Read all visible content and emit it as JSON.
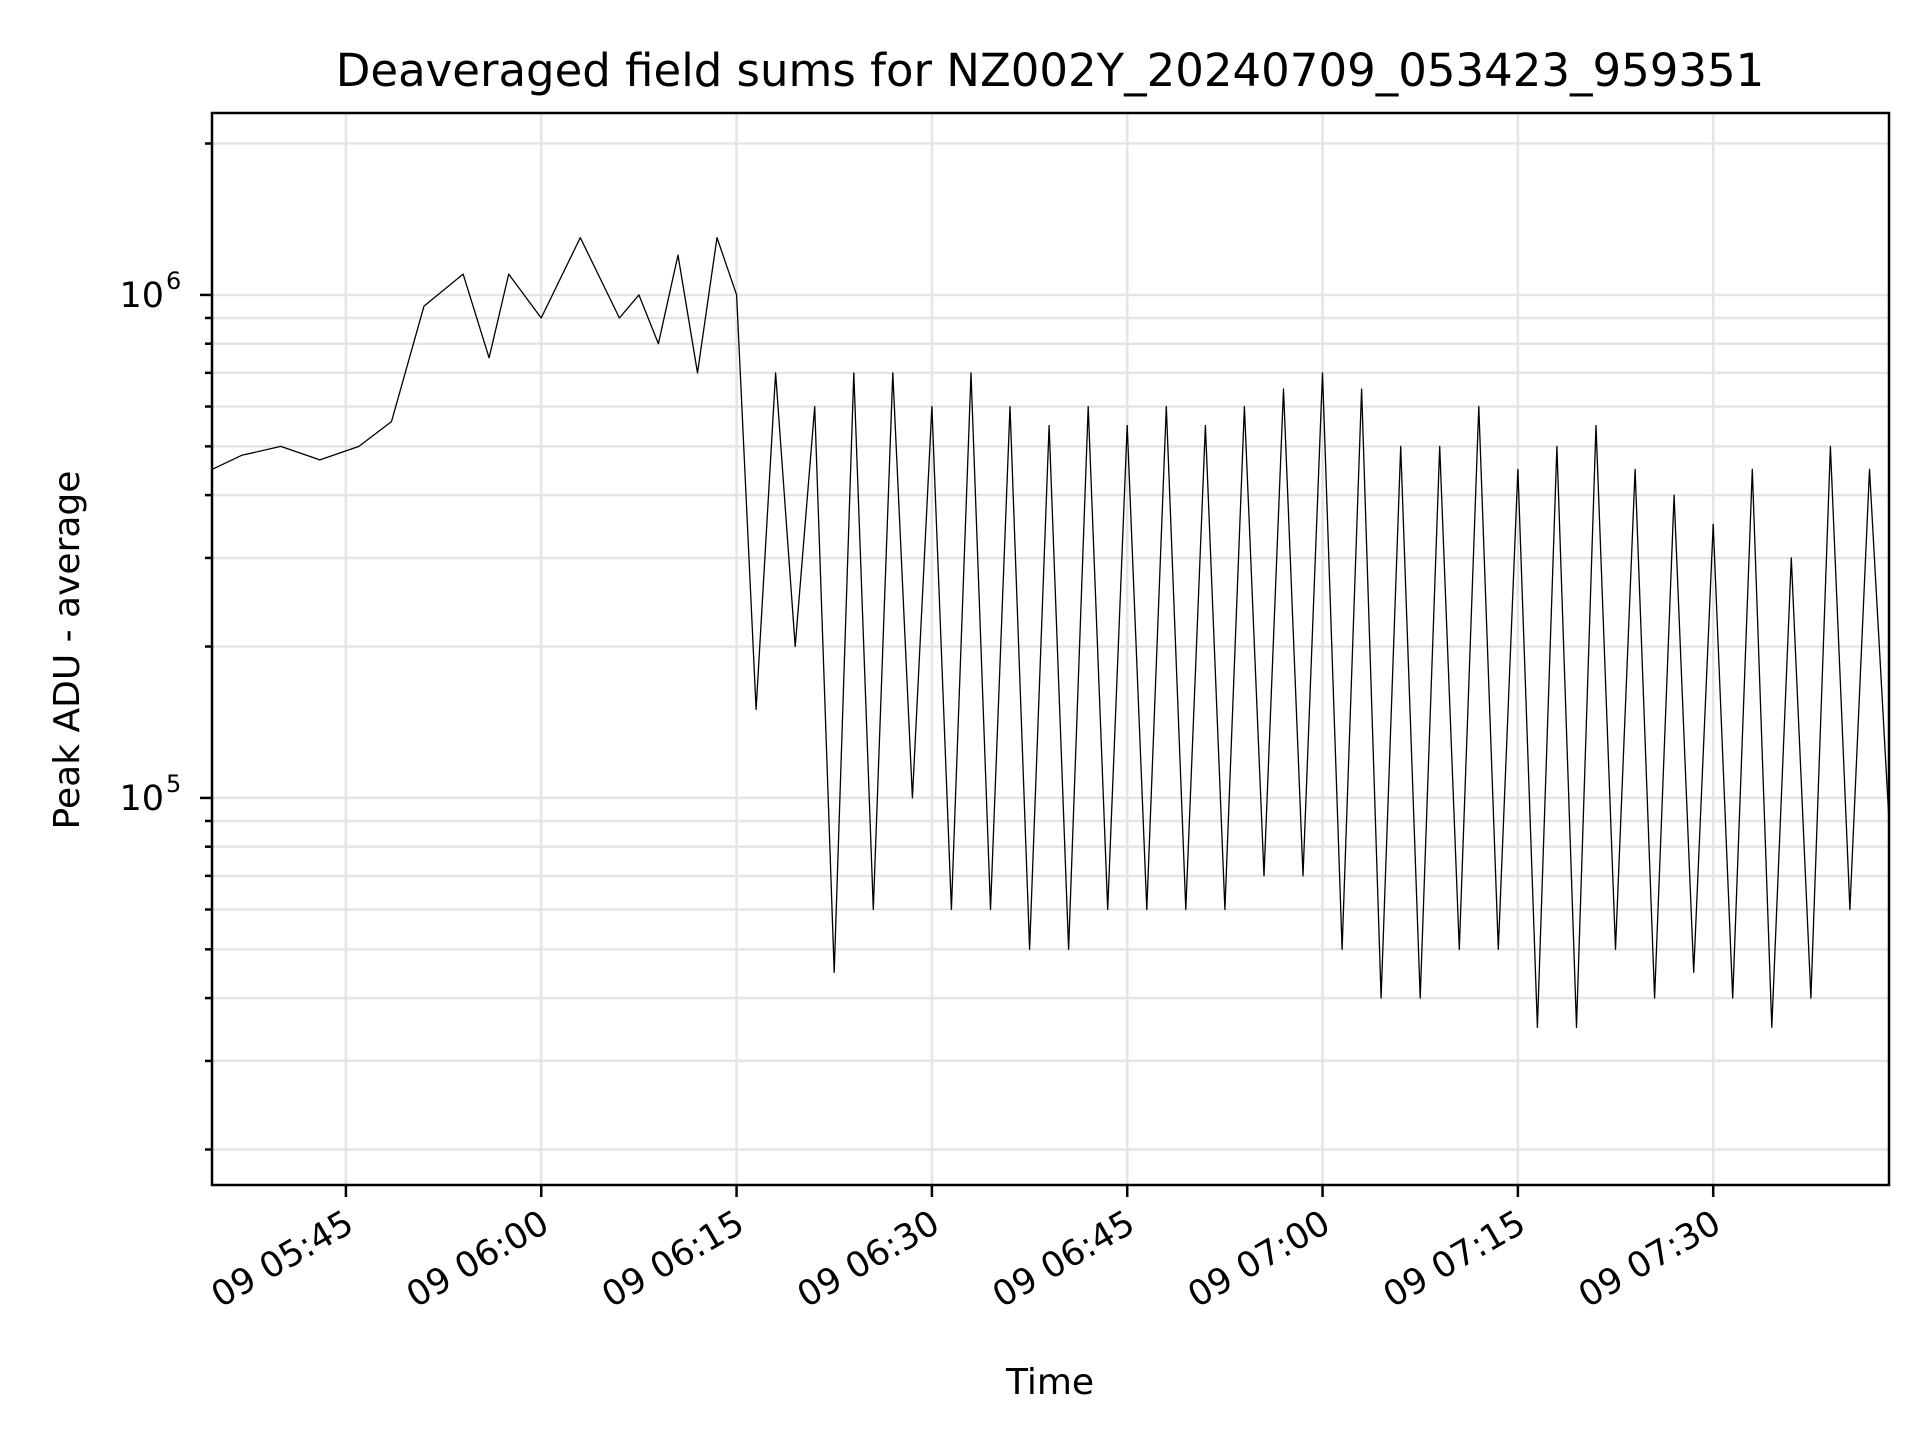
{
  "chart_data": {
    "type": "line",
    "title": "Deaveraged field sums for NZ002Y_20240709_053423_959351",
    "xlabel": "Time",
    "ylabel": "Peak ADU - average",
    "x_tick_labels": [
      "09 05:45",
      "09 06:00",
      "09 06:15",
      "09 06:30",
      "09 06:45",
      "09 07:00",
      "09 07:15",
      "09 07:30"
    ],
    "y_tick_labels": [
      {
        "base": "10",
        "exp": "5",
        "value": 100000
      },
      {
        "base": "10",
        "exp": "6",
        "value": 1000000
      }
    ],
    "xlim": [
      "2024-07-09 05:34:43",
      "2024-07-09 07:43:30"
    ],
    "ylim": [
      17000,
      2300000
    ],
    "yscale": "log",
    "grid": true,
    "line_color": "#000000",
    "series": [
      {
        "x": [
          "2024-07-09 05:34:43",
          "2024-07-09 05:37:00",
          "2024-07-09 05:40:00",
          "2024-07-09 05:43:00",
          "2024-07-09 05:46:00",
          "2024-07-09 05:48:30",
          "2024-07-09 05:51:00",
          "2024-07-09 05:54:00",
          "2024-07-09 05:56:00",
          "2024-07-09 05:57:30",
          "2024-07-09 06:00:00",
          "2024-07-09 06:03:00",
          "2024-07-09 06:06:00",
          "2024-07-09 06:07:30",
          "2024-07-09 06:09:00",
          "2024-07-09 06:10:30",
          "2024-07-09 06:12:00",
          "2024-07-09 06:13:30",
          "2024-07-09 06:15:00",
          "2024-07-09 06:16:30",
          "2024-07-09 06:18:00",
          "2024-07-09 06:19:30",
          "2024-07-09 06:21:00",
          "2024-07-09 06:22:30",
          "2024-07-09 06:24:00",
          "2024-07-09 06:25:30",
          "2024-07-09 06:27:00",
          "2024-07-09 06:28:30",
          "2024-07-09 06:30:00",
          "2024-07-09 06:31:30",
          "2024-07-09 06:33:00",
          "2024-07-09 06:34:30",
          "2024-07-09 06:36:00",
          "2024-07-09 06:37:30",
          "2024-07-09 06:39:00",
          "2024-07-09 06:40:30",
          "2024-07-09 06:42:00",
          "2024-07-09 06:43:30",
          "2024-07-09 06:45:00",
          "2024-07-09 06:46:30",
          "2024-07-09 06:48:00",
          "2024-07-09 06:49:30",
          "2024-07-09 06:51:00",
          "2024-07-09 06:52:30",
          "2024-07-09 06:54:00",
          "2024-07-09 06:55:30",
          "2024-07-09 06:57:00",
          "2024-07-09 06:58:30",
          "2024-07-09 07:00:00",
          "2024-07-09 07:01:30",
          "2024-07-09 07:03:00",
          "2024-07-09 07:04:30",
          "2024-07-09 07:06:00",
          "2024-07-09 07:07:30",
          "2024-07-09 07:09:00",
          "2024-07-09 07:10:30",
          "2024-07-09 07:12:00",
          "2024-07-09 07:13:30",
          "2024-07-09 07:15:00",
          "2024-07-09 07:16:30",
          "2024-07-09 07:18:00",
          "2024-07-09 07:19:30",
          "2024-07-09 07:21:00",
          "2024-07-09 07:22:30",
          "2024-07-09 07:24:00",
          "2024-07-09 07:25:30",
          "2024-07-09 07:27:00",
          "2024-07-09 07:28:30",
          "2024-07-09 07:30:00",
          "2024-07-09 07:31:30",
          "2024-07-09 07:33:00",
          "2024-07-09 07:34:30",
          "2024-07-09 07:36:00",
          "2024-07-09 07:37:30",
          "2024-07-09 07:39:00",
          "2024-07-09 07:40:30",
          "2024-07-09 07:42:00",
          "2024-07-09 07:43:30"
        ],
        "values": [
          450000,
          480000,
          500000,
          470000,
          500000,
          560000,
          950000,
          1100000,
          750000,
          1100000,
          900000,
          1300000,
          900000,
          1000000,
          800000,
          1200000,
          700000,
          1300000,
          1000000,
          150000,
          700000,
          200000,
          600000,
          45000,
          700000,
          60000,
          700000,
          100000,
          600000,
          60000,
          700000,
          60000,
          600000,
          50000,
          550000,
          50000,
          600000,
          60000,
          550000,
          60000,
          600000,
          60000,
          550000,
          60000,
          600000,
          70000,
          650000,
          70000,
          700000,
          50000,
          650000,
          40000,
          500000,
          40000,
          500000,
          50000,
          600000,
          50000,
          450000,
          35000,
          500000,
          35000,
          550000,
          50000,
          450000,
          40000,
          400000,
          45000,
          350000,
          40000,
          450000,
          35000,
          300000,
          40000,
          500000,
          60000,
          450000,
          90000
        ]
      }
    ]
  }
}
